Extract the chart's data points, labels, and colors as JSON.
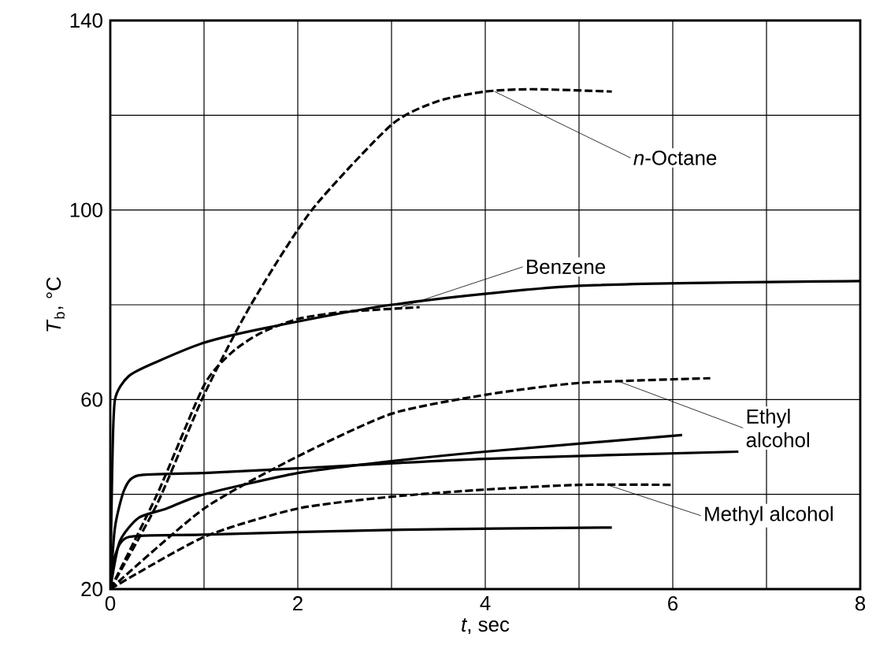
{
  "chart_data": {
    "type": "line",
    "xlabel": "*t*, sec",
    "ylabel": "*T*$_{b}$, °C",
    "xlim": [
      0,
      8
    ],
    "ylim": [
      20,
      140
    ],
    "xticks": [
      0,
      {
        "value": 1,
        "label": null
      },
      2,
      {
        "value": 3,
        "label": null
      },
      4,
      {
        "value": 5,
        "label": null
      },
      6,
      {
        "value": 7,
        "label": null
      },
      8
    ],
    "yticks": [
      20,
      {
        "value": 40,
        "label": null
      },
      60,
      {
        "value": 80,
        "label": null
      },
      100,
      {
        "value": 120,
        "label": null
      },
      140
    ],
    "grid": true,
    "marker": "none",
    "series": [
      {
        "color": "#000000",
        "line_style": "dashed",
        "x": [
          0,
          0.5,
          1,
          1.5,
          2.15,
          3,
          3.5,
          4,
          4.5,
          5.35
        ],
        "values": [
          20,
          38,
          61,
          80,
          100,
          118,
          123,
          125,
          125.5,
          125
        ]
      },
      {
        "color": "#000000",
        "line_style": "solid",
        "x": [
          0,
          0.02,
          0.05,
          0.2,
          0.5,
          1,
          1.63,
          3,
          5,
          8
        ],
        "values": [
          20,
          45,
          60,
          65,
          68,
          72,
          75,
          80,
          84,
          85
        ]
      },
      {
        "color": "#000000",
        "line_style": "dashed",
        "x": [
          0,
          0.5,
          1,
          1.3,
          1.6,
          2,
          2.5,
          3.3
        ],
        "values": [
          20,
          40,
          63,
          70,
          74,
          77,
          78.5,
          79.5
        ]
      },
      {
        "color": "#000000",
        "line_style": "solid",
        "x": [
          0,
          0.05,
          0.15,
          0.3,
          1,
          2,
          4,
          6.7
        ],
        "values": [
          20,
          33,
          41,
          44,
          44.5,
          45.5,
          47.5,
          49
        ]
      },
      {
        "color": "#000000",
        "line_style": "dashed",
        "x": [
          0,
          1,
          2,
          3,
          4,
          5,
          6.4
        ],
        "values": [
          20,
          37,
          48,
          57,
          61,
          63.5,
          64.5
        ]
      },
      {
        "color": "#000000",
        "line_style": "solid",
        "x": [
          0,
          0.1,
          0.3,
          0.6,
          1,
          2,
          3,
          4,
          6.1
        ],
        "values": [
          20,
          30,
          35,
          37,
          40,
          44.5,
          47,
          49,
          52.5
        ]
      },
      {
        "color": "#000000",
        "line_style": "dashed",
        "x": [
          0,
          1,
          2,
          3,
          4,
          5,
          6
        ],
        "values": [
          20,
          31,
          37,
          39.5,
          41,
          42,
          42
        ]
      },
      {
        "color": "#000000",
        "line_style": "solid",
        "x": [
          0,
          0.05,
          0.2,
          1,
          3,
          5.35
        ],
        "values": [
          20,
          27,
          31,
          31.5,
          32.5,
          33
        ]
      }
    ],
    "annotations": [
      {
        "text": "*n*-Octane",
        "x": 4.1,
        "y": 125
      },
      {
        "text": "Benzene",
        "x": 3.1,
        "y": 79.5
      },
      {
        "text": "Ethyl alcohol",
        "x": 5.4,
        "y": 64
      },
      {
        "text": "Methyl alcohol",
        "x": 5.3,
        "y": 42
      }
    ]
  }
}
